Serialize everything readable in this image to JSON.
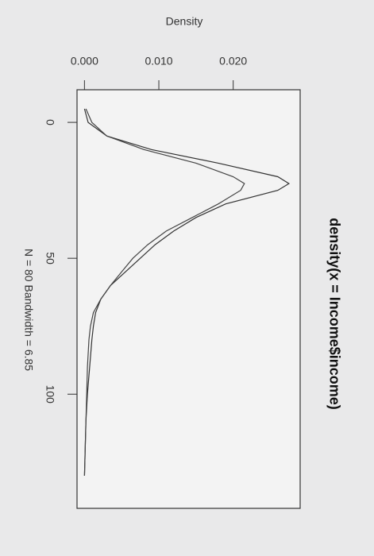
{
  "chart_data": {
    "type": "line",
    "title": "density(x = Income$income)",
    "xlabel": "N = 80   Bandwidth = 6.85",
    "ylabel": "Density",
    "x": [
      -5,
      0,
      5,
      10,
      15,
      20,
      22.5,
      25,
      30,
      35,
      40,
      45,
      50,
      55,
      60,
      65,
      70,
      75,
      80,
      90,
      100,
      110,
      120,
      130
    ],
    "series": [
      {
        "color": "#333333",
        "values": [
          0.0,
          0.0005,
          0.003,
          0.009,
          0.018,
          0.026,
          0.0275,
          0.026,
          0.019,
          0.015,
          0.012,
          0.0095,
          0.0075,
          0.0055,
          0.0035,
          0.0022,
          0.0015,
          0.0012,
          0.001,
          0.0007,
          0.0004,
          0.0002,
          0.0001,
          0.0
        ]
      },
      {
        "color": "#444444",
        "values": [
          0.0002,
          0.001,
          0.003,
          0.008,
          0.015,
          0.02,
          0.0215,
          0.021,
          0.018,
          0.0145,
          0.011,
          0.0085,
          0.0065,
          0.005,
          0.0035,
          0.0022,
          0.0012,
          0.0008,
          0.0006,
          0.0004,
          0.0003,
          0.0002,
          0.0001,
          0.0
        ]
      }
    ],
    "xlim": [
      -12,
      142
    ],
    "xticks": [
      0,
      50,
      100
    ],
    "ylim": [
      -0.001,
      0.029
    ],
    "yticks": [
      {
        "value": 0,
        "label": "0.000"
      },
      {
        "value": 0.01,
        "label": "0.010"
      },
      {
        "value": 0.02,
        "label": "0.020"
      }
    ]
  }
}
